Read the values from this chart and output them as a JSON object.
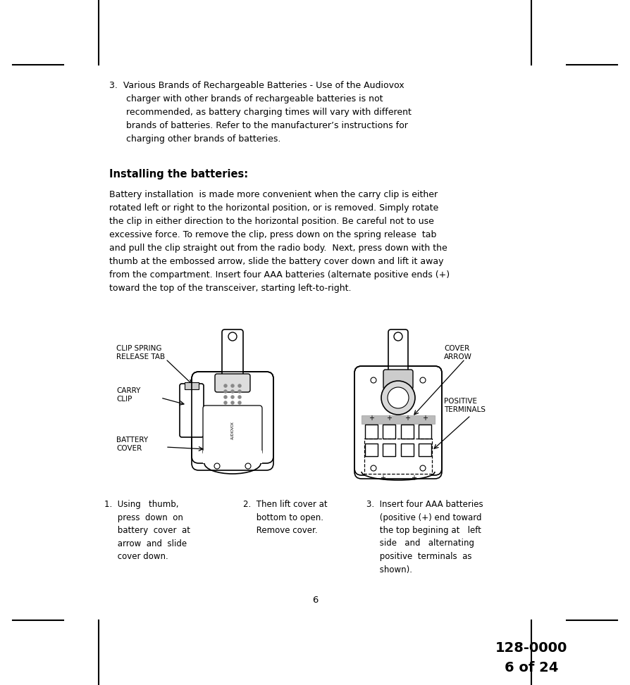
{
  "bg_color": "#ffffff",
  "text_color": "#000000",
  "page_width": 8.94,
  "page_height": 9.73,
  "item3_text": "3.  Various Brands of Rechargeable Batteries - Use of the Audiovox\n      charger with other brands of rechargeable batteries is not\n      recommended, as battery charging times will vary with different\n      brands of batteries. Refer to the manufacturer’s instructions for\n      charging other brands of batteries.",
  "installing_title": "Installing the batteries:",
  "installing_body": "Battery installation  is made more convenient when the carry clip is either\nrotated left or right to the horizontal position, or is removed. Simply rotate\nthe clip in either direction to the horizontal position. Be careful not to use\nexcessive force. To remove the clip, press down on the spring release  tab\nand pull the clip straight out from the radio body.  Next, press down with the\nthumb at the embossed arrow, slide the battery cover down and lift it away\nfrom the compartment. Insert four AAA batteries (alternate positive ends (+)\ntoward the top of the transceiver, starting left-to-right.",
  "step1_text": "1.  Using   thumb,\n     press  down  on\n     battery  cover  at\n     arrow  and  slide\n     cover down.",
  "step2_text": "2.  Then lift cover at\n     bottom to open.\n     Remove cover.",
  "step3_text": "3.  Insert four AAA batteries\n     (positive (+) end toward\n     the top begining at   left\n     side   and   alternating\n     positive  terminals  as\n     shown).",
  "label_clip_spring": "CLIP SPRING\nRELEASE TAB",
  "label_carry_clip": "CARRY\nCLIP",
  "label_battery_cover": "BATTERY\nCOVER",
  "label_cover_arrow": "COVER\nARROW",
  "label_positive_terminals": "POSITIVE\nTERMINALS",
  "page_number": "6",
  "doc_number_line1": "128-0000",
  "doc_number_line2": "6 of 24"
}
